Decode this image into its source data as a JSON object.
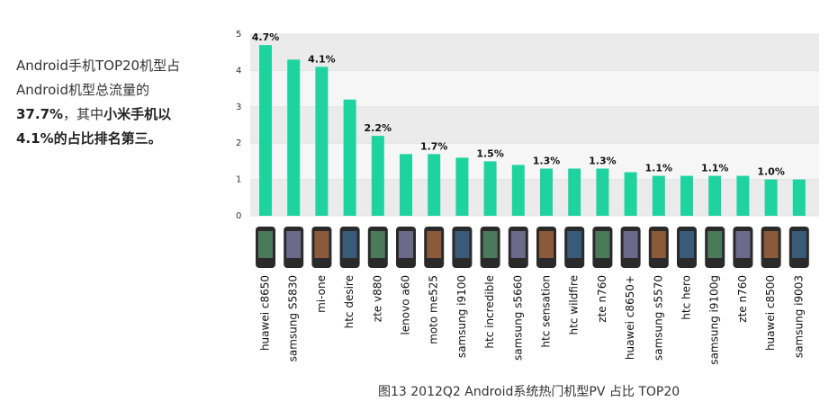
{
  "summary": [
    "Android手机TOP20机型占",
    "Android机型总流量的",
    "37.7%",
    "，其中",
    "小米手机以",
    "4.1%的占比排名第三。"
  ],
  "chart_data": {
    "type": "bar",
    "caption": "图13  2012Q2 Android系统热门机型PV 占比 TOP20",
    "categories": [
      "huawei c8650",
      "samsung S5830",
      "mi-one",
      "htc desire",
      "zte v880",
      "lenovo a60",
      "moto me525",
      "samsung i9100",
      "htc incredible",
      "samsung s5660",
      "htc sensation",
      "htc wildfire",
      "zte n760",
      "huawei c8650+",
      "samsung s5570",
      "htc hero",
      "samsung i9100g",
      "zte n760",
      "huawei c8500",
      "samsung i9003"
    ],
    "values": [
      4.7,
      4.3,
      4.1,
      3.2,
      2.2,
      1.7,
      1.7,
      1.6,
      1.5,
      1.4,
      1.3,
      1.3,
      1.3,
      1.2,
      1.1,
      1.1,
      1.1,
      1.1,
      1.0,
      1.0
    ],
    "value_labels": [
      "4.7%",
      null,
      "4.1%",
      null,
      "2.2%",
      null,
      "1.7%",
      null,
      "1.5%",
      null,
      "1.3%",
      null,
      "1.3%",
      null,
      "1.1%",
      null,
      "1.1%",
      null,
      "1.0%",
      null
    ],
    "color": "#1fd3a0",
    "ylim": [
      0,
      5
    ],
    "yticks": [
      0,
      1,
      2,
      3,
      4,
      5
    ],
    "grid": true
  }
}
